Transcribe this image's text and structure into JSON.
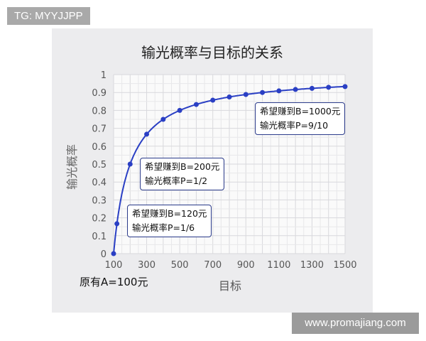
{
  "tag": "TG: MYYJJPP",
  "watermark": "www.promajiang.com",
  "base_note": "原有A=100元",
  "chart_data": {
    "type": "line",
    "title": "输光概率与目标的关系",
    "xlabel": "目标",
    "ylabel": "输光概率",
    "xlim": [
      100,
      1500
    ],
    "ylim": [
      0,
      1
    ],
    "grid": true,
    "x_ticks": [
      "100",
      "300",
      "500",
      "700",
      "900",
      "1100",
      "1300",
      "1500"
    ],
    "y_ticks": [
      "0",
      "0.1",
      "0.2",
      "0.3",
      "0.4",
      "0.5",
      "0.6",
      "0.7",
      "0.8",
      "0.9",
      "1"
    ],
    "color": "#2a3fc4",
    "x": [
      100,
      120,
      200,
      300,
      400,
      500,
      600,
      700,
      800,
      900,
      1000,
      1100,
      1200,
      1300,
      1400,
      1500
    ],
    "y": [
      0,
      0.167,
      0.5,
      0.667,
      0.75,
      0.8,
      0.833,
      0.857,
      0.875,
      0.889,
      0.9,
      0.909,
      0.917,
      0.923,
      0.929,
      0.933
    ],
    "annotations": [
      {
        "line1": "希望赚到B=120元",
        "line2": "输光概率P=1/6"
      },
      {
        "line1": "希望赚到B=200元",
        "line2": "输光概率P=1/2"
      },
      {
        "line1": "希望赚到B=1000元",
        "line2": "输光概率P=9/10"
      }
    ]
  }
}
